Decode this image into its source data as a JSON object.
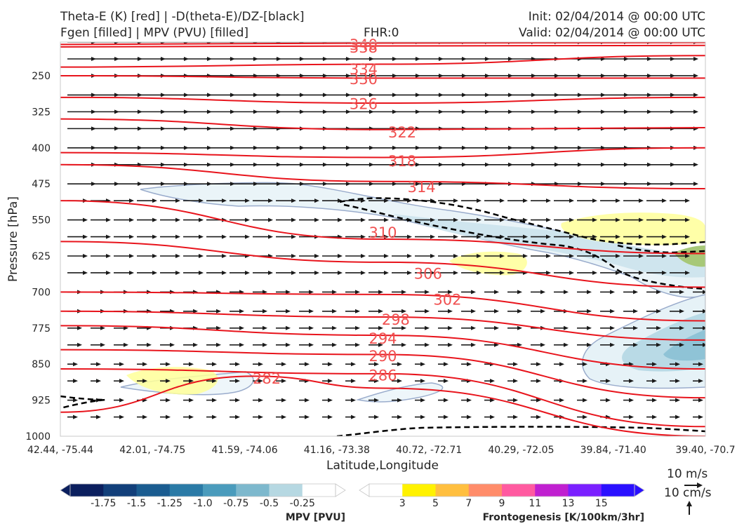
{
  "header": {
    "title_line1": "Theta-E (K) [red] | -D(theta-E)/DZ-[black]",
    "title_line2": "Fgen [filled] | MPV (PVU) [filled]",
    "fhr": "FHR:0",
    "init": "Init: 02/04/2014 @ 00:00 UTC",
    "valid": "Valid: 02/04/2014 @ 00:00 UTC"
  },
  "colors": {
    "theta_e": "#e8141c",
    "stability": "#000000",
    "wind": "#1a1a1a",
    "label": "#f05050",
    "mpv_outline": "#9aaccc"
  },
  "chart_data": {
    "type": "cross-section",
    "xlabel": "Latitude,Longitude",
    "ylabel": "Pressure [hPa]",
    "x_ticks": [
      "42.44, -75.44",
      "42.01, -74.75",
      "41.59, -74.06",
      "41.16, -73.38",
      "40.72, -72.71",
      "40.29, -72.05",
      "39.84, -71.40",
      "39.40, -70.7"
    ],
    "y_ticks": [
      250,
      325,
      400,
      475,
      550,
      625,
      700,
      775,
      850,
      925,
      1000
    ],
    "ylim": [
      1000,
      180
    ],
    "theta_e_levels": [
      {
        "value": 340,
        "points": [
          [
            0,
            185
          ],
          [
            0.5,
            182
          ],
          [
            1,
            181
          ]
        ],
        "label": "340",
        "label_at": [
          0.47,
          186
        ]
      },
      {
        "value": 338,
        "points": [
          [
            0,
            190
          ],
          [
            0.5,
            188
          ],
          [
            1,
            187
          ]
        ],
        "label": "338",
        "label_at": [
          0.47,
          192
        ]
      },
      {
        "value": 334,
        "points": [
          [
            0,
            232
          ],
          [
            0.5,
            226
          ],
          [
            1,
            208
          ]
        ],
        "label": "334",
        "label_at": [
          0.47,
          237
        ]
      },
      {
        "value": 330,
        "points": [
          [
            0,
            250
          ],
          [
            0.5,
            255
          ],
          [
            1,
            255
          ]
        ],
        "label": "330",
        "label_at": [
          0.47,
          257
        ]
      },
      {
        "value": 326,
        "points": [
          [
            0,
            295
          ],
          [
            0.5,
            307
          ],
          [
            1,
            295
          ]
        ],
        "label": "326",
        "label_at": [
          0.47,
          309
        ]
      },
      {
        "value": 322,
        "points": [
          [
            0,
            340
          ],
          [
            0.5,
            362
          ],
          [
            1,
            358
          ]
        ],
        "label": "322",
        "label_at": [
          0.53,
          368
        ]
      },
      {
        "value": 318,
        "points": [
          [
            0,
            410
          ],
          [
            0.5,
            420
          ],
          [
            1,
            400
          ]
        ],
        "label": "318",
        "label_at": [
          0.53,
          428
        ]
      },
      {
        "value": 314,
        "points": [
          [
            0,
            435
          ],
          [
            0.5,
            470
          ],
          [
            1,
            485
          ]
        ],
        "label": "314",
        "label_at": [
          0.56,
          482
        ]
      },
      {
        "value": 310,
        "points": [
          [
            0,
            510
          ],
          [
            0.5,
            590
          ],
          [
            1,
            620
          ]
        ],
        "label": "310",
        "label_at": [
          0.5,
          577
        ]
      },
      {
        "value": 306,
        "points": [
          [
            0,
            595
          ],
          [
            0.5,
            638
          ],
          [
            1,
            690
          ]
        ],
        "label": "306",
        "label_at": [
          0.57,
          662
        ]
      },
      {
        "value": 302,
        "points": [
          [
            0,
            700
          ],
          [
            0.5,
            705
          ],
          [
            1,
            760
          ]
        ],
        "label": "302",
        "label_at": [
          0.6,
          716
        ]
      },
      {
        "value": 298,
        "points": [
          [
            0,
            740
          ],
          [
            0.5,
            752
          ],
          [
            1,
            800
          ]
        ],
        "label": "298",
        "label_at": [
          0.52,
          758
        ]
      },
      {
        "value": 294,
        "points": [
          [
            0,
            770
          ],
          [
            0.5,
            790
          ],
          [
            1,
            860
          ]
        ],
        "label": "294",
        "label_at": [
          0.5,
          797
        ]
      },
      {
        "value": 290,
        "points": [
          [
            0,
            820
          ],
          [
            0.5,
            830
          ],
          [
            1,
            920
          ]
        ],
        "label": "290",
        "label_at": [
          0.5,
          834
        ]
      },
      {
        "value": 286,
        "points": [
          [
            0,
            860
          ],
          [
            0.5,
            870
          ],
          [
            1,
            980
          ]
        ],
        "label": "286",
        "label_at": [
          0.5,
          874
        ]
      },
      {
        "value": 282,
        "points": [
          [
            0,
            950
          ],
          [
            0.3,
            875
          ],
          [
            0.5,
            900
          ],
          [
            1,
            1000
          ]
        ],
        "label": "282",
        "label_at": [
          0.32,
          880
        ]
      }
    ],
    "mpv_colorbar": {
      "title": "MPV [PVU]",
      "colors": [
        "#0b1f5e",
        "#123f7a",
        "#1a5c90",
        "#2a7aa6",
        "#4a9bbc",
        "#7db8cd",
        "#b6d8e2",
        "#ffffff"
      ],
      "ticks": [
        "-1.75",
        "-1.5",
        "-1.25",
        "-1.0",
        "-0.75",
        "-0.5",
        "-0.25"
      ]
    },
    "fgen_colorbar": {
      "title": "Frontogenesis [K/100km/3hr]",
      "colors": [
        "#ffffff",
        "#fff200",
        "#ffbf3f",
        "#ff8c6a",
        "#ff5aa0",
        "#c020d0",
        "#7a20ff",
        "#2a10ff"
      ],
      "ticks": [
        "3",
        "5",
        "7",
        "9",
        "11",
        "13",
        "15"
      ]
    },
    "wind_key": {
      "horizontal_label": "10 m/s",
      "vertical_label": "10 cm/s"
    }
  }
}
